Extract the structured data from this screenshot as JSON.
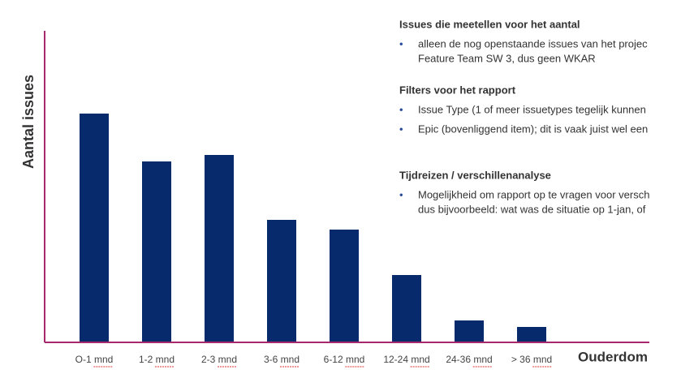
{
  "chart_data": {
    "type": "bar",
    "categories": [
      "O-1 mnd",
      "1-2 mnd",
      "2-3 mnd",
      "3-6 mnd",
      "6-12 mnd",
      "12-24 mnd",
      "24-36 mnd",
      "> 36 mnd"
    ],
    "values": [
      282,
      223,
      231,
      151,
      139,
      83,
      27,
      19
    ],
    "color": "#072a6c",
    "ylim": [
      0,
      384
    ],
    "ylabel": "Aantal issues",
    "xlabel": "Ouderdom"
  },
  "notes": [
    {
      "heading": "Issues die meetellen voor het aantal",
      "bullets": [
        [
          "alleen de nog openstaande issues van het projec",
          "Feature Team SW 3, dus geen WKAR"
        ]
      ]
    },
    {
      "heading": "Filters voor het rapport",
      "bullets": [
        [
          "Issue Type (1 of meer issuetypes tegelijk kunnen"
        ],
        [
          "Epic (bovenliggend item); dit is vaak juist wel een"
        ]
      ]
    },
    {
      "heading": "Tijdreizen / verschillenanalyse",
      "bullets": [
        [
          "Mogelijkheid om rapport op te vragen voor versch",
          "dus bijvoorbeeld: wat was de situatie op 1-jan, of"
        ]
      ]
    }
  ]
}
